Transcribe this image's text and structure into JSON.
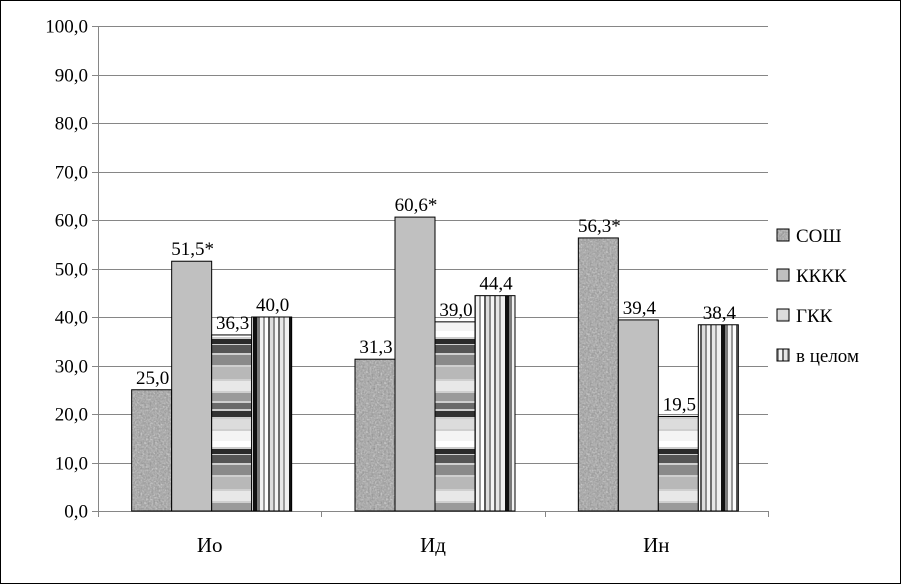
{
  "chart_data": {
    "type": "bar",
    "title": "",
    "xlabel": "",
    "ylabel": "",
    "ylim": [
      0,
      100
    ],
    "yticks": [
      0,
      10,
      20,
      30,
      40,
      50,
      60,
      70,
      80,
      90,
      100
    ],
    "ytick_labels": [
      "0,0",
      "10,0",
      "20,0",
      "30,0",
      "40,0",
      "50,0",
      "60,0",
      "70,0",
      "80,0",
      "90,0",
      "100,0"
    ],
    "grid": "horizontal",
    "legend_position": "right",
    "categories": [
      "Ио",
      "Ид",
      "Ин"
    ],
    "series": [
      {
        "name": "СОШ",
        "values": [
          25.0,
          31.3,
          56.3
        ],
        "labels": [
          "25,0",
          "31,3",
          "56,3*"
        ],
        "fill": "granite"
      },
      {
        "name": "КККК",
        "values": [
          51.5,
          60.6,
          39.4
        ],
        "labels": [
          "51,5*",
          "60,6*",
          "39,4"
        ],
        "fill": "#c0c0c0"
      },
      {
        "name": "ГКК",
        "values": [
          36.3,
          39.0,
          19.5
        ],
        "labels": [
          "36,3",
          "39,0",
          "19,5"
        ],
        "fill": "horizontal-metal"
      },
      {
        "name": "в целом",
        "values": [
          40.0,
          44.4,
          38.4
        ],
        "labels": [
          "40,0",
          "44,4",
          "38,4"
        ],
        "fill": "vertical-stripes"
      }
    ]
  }
}
